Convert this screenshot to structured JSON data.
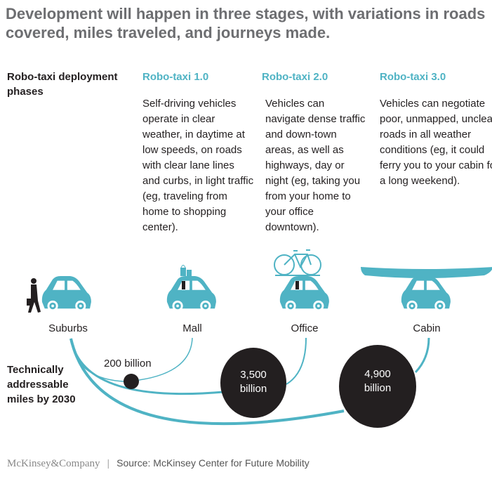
{
  "title": "Development will happen in three stages, with variations in roads covered, miles traveled, and journeys made.",
  "phases_label": "Robo-taxi deployment phases",
  "phases": [
    {
      "name": "Robo-taxi 1.0",
      "description": "Self-driving vehicles operate in clear weather, in daytime at low speeds, on roads with clear lane lines and curbs, in light traffic (eg, traveling from home to shopping center)."
    },
    {
      "name": "Robo-taxi 2.0",
      "description": "Vehicles can navigate dense traffic and down-town areas, as well as highways, day or night (eg, taking you from your home to your office downtown)."
    },
    {
      "name": "Robo-taxi 3.0",
      "description": "Vehicles can negotiate poor, unmapped, unclear roads in all weather conditions (eg, it could ferry you to your cabin for a long weekend)."
    }
  ],
  "places": [
    "Suburbs",
    "Mall",
    "Office",
    "Cabin"
  ],
  "miles_label": "Technically addressable miles by 2030",
  "miles": [
    {
      "value": "200",
      "unit": "billion"
    },
    {
      "value": "3,500",
      "unit": "billion"
    },
    {
      "value": "4,900",
      "unit": "billion"
    }
  ],
  "footer": {
    "logo": "McKinsey&Company",
    "separator": "|",
    "source": "Source: McKinsey Center for Future Mobility"
  },
  "colors": {
    "accent": "#4fb3c4",
    "dark": "#231f20",
    "title": "#6d6e71"
  },
  "icons": [
    "person-icon",
    "car-icon",
    "shopping-bags-icon",
    "bicycle-icon",
    "kayak-icon"
  ]
}
